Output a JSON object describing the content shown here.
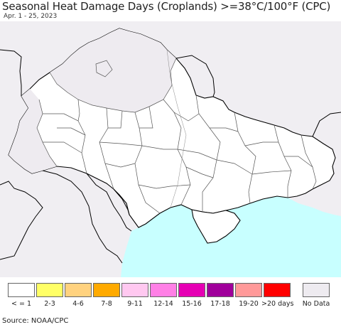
{
  "header": {
    "title": "Seasonal Heat Damage Days (Croplands) >=38°C/100°F (CPC)",
    "subtitle": "Apr. 1 - 25, 2023"
  },
  "map": {
    "colors": {
      "land": "#ffffff",
      "outside": "#f0eef2",
      "no_data": "#eeebf0",
      "sea": "#c8ffff",
      "border": "#555555",
      "country_border": "#000000"
    }
  },
  "legend": {
    "items": [
      {
        "label": "< = 1",
        "color": "#ffffff"
      },
      {
        "label": "2-3",
        "color": "#ffff66"
      },
      {
        "label": "4-6",
        "color": "#ffd27f"
      },
      {
        "label": "7-8",
        "color": "#ffaa00"
      },
      {
        "label": "9-11",
        "color": "#ffc8f0"
      },
      {
        "label": "12-14",
        "color": "#ff80e6"
      },
      {
        "label": "15-16",
        "color": "#e600b4"
      },
      {
        "label": "17-18",
        "color": "#a0009b"
      },
      {
        "label": "19-20",
        "color": "#ff9999"
      },
      {
        "label": ">20 days",
        "color": "#ff0000"
      }
    ],
    "no_data": {
      "label": "No Data",
      "color": "#eeebf0"
    }
  },
  "footer": {
    "source": "Source: NOAA/CPC"
  }
}
